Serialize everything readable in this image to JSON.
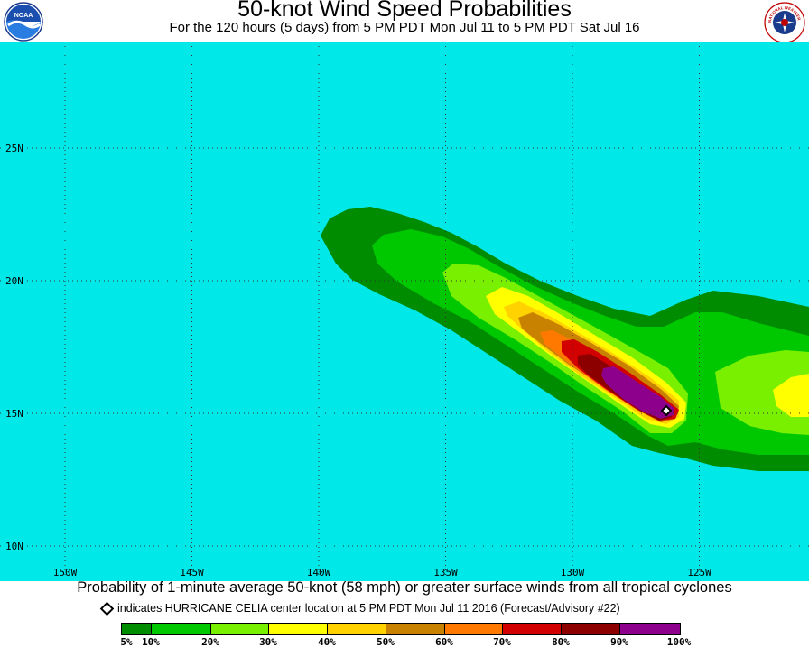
{
  "header": {
    "title": "50-knot Wind Speed Probabilities",
    "subtitle": "For the 120 hours (5 days) from 5 PM PDT Mon Jul 11 to 5 PM PDT Sat Jul 16",
    "left_logo_text": "NOAA",
    "right_logo_text": "NATIONAL WEATHER SERVICE"
  },
  "map": {
    "ocean_color": "#00E8E8",
    "grid_style": "dotted",
    "latitudes": [
      "25N",
      "20N",
      "15N",
      "10N"
    ],
    "longitudes": [
      "150W",
      "145W",
      "140W",
      "135W",
      "130W",
      "125W"
    ],
    "storm_marker": {
      "name": "HURRICANE CELIA",
      "lat": 15.3,
      "lon": -126.6
    }
  },
  "footer": {
    "caption": "Probability of 1-minute average 50-knot (58 mph) or greater surface winds from all tropical cyclones",
    "legend_note": "indicates HURRICANE CELIA center location at 5 PM PDT Mon Jul 11 2016 (Forecast/Advisory #22)"
  },
  "colorbar": {
    "labels": [
      "5%",
      "10%",
      "20%",
      "30%",
      "40%",
      "50%",
      "60%",
      "70%",
      "80%",
      "90%",
      "100%"
    ],
    "colors": [
      "#008C00",
      "#00C800",
      "#78F000",
      "#FFFF00",
      "#FFD200",
      "#C88200",
      "#FF7800",
      "#D20000",
      "#8C0000",
      "#8C008C"
    ]
  }
}
